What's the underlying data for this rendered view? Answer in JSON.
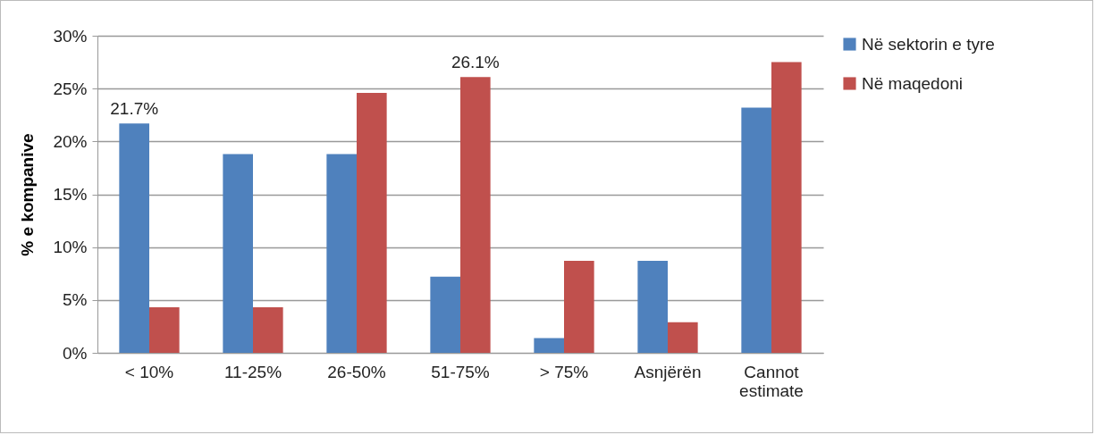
{
  "chart_data": {
    "type": "bar",
    "ylabel": "% e kompanive",
    "categories": [
      "< 10%",
      "11-25%",
      "26-50%",
      "51-75%",
      "> 75%",
      "Asnjërën",
      "Cannot estimate"
    ],
    "series": [
      {
        "name": "Në sektorin e tyre",
        "color": "#4f81bd",
        "values": [
          21.7,
          18.8,
          18.8,
          7.2,
          1.4,
          8.7,
          23.2
        ],
        "value_labels": [
          "21.7%",
          null,
          null,
          null,
          null,
          null,
          null
        ]
      },
      {
        "name": "Në maqedoni",
        "color": "#c0504d",
        "values": [
          4.3,
          4.3,
          24.6,
          26.1,
          8.7,
          2.9,
          27.5
        ],
        "value_labels": [
          null,
          null,
          null,
          "26.1%",
          null,
          null,
          null
        ]
      }
    ],
    "ylim": [
      0,
      30
    ],
    "yticks": [
      {
        "value": 0,
        "label": "0%"
      },
      {
        "value": 5,
        "label": "5%"
      },
      {
        "value": 10,
        "label": "10%"
      },
      {
        "value": 15,
        "label": "15%"
      },
      {
        "value": 20,
        "label": "20%"
      },
      {
        "value": 25,
        "label": "25%"
      },
      {
        "value": 30,
        "label": "30%"
      }
    ],
    "grid": "y",
    "legend": "right"
  }
}
